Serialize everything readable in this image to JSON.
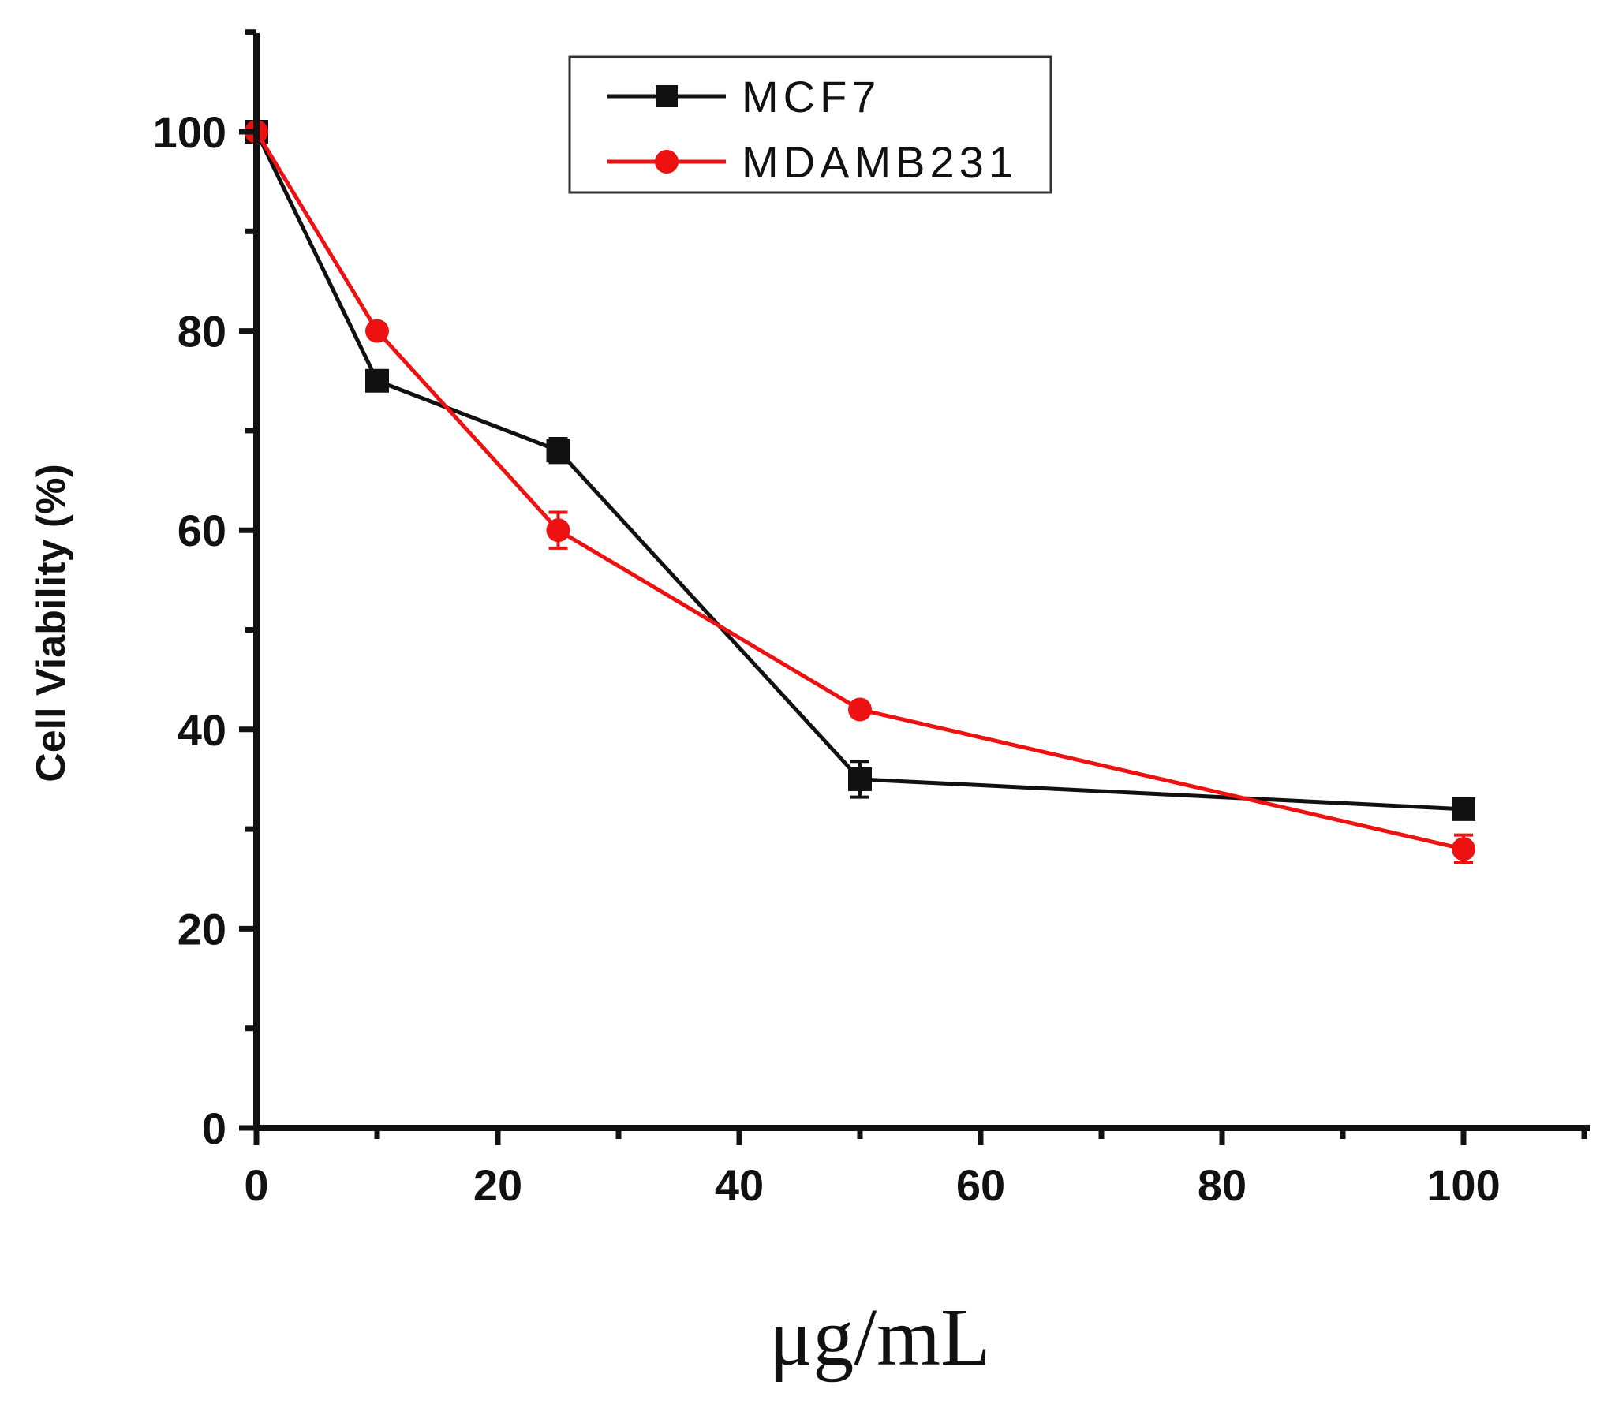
{
  "chart_data": {
    "type": "line",
    "title": "",
    "xlabel": "μg/mL",
    "ylabel": "Cell Viability (%)",
    "xlim": [
      0,
      110
    ],
    "ylim": [
      0,
      110
    ],
    "x_ticks": [
      0,
      20,
      40,
      60,
      80,
      100
    ],
    "y_ticks": [
      0,
      20,
      40,
      60,
      80,
      100
    ],
    "x_tick_labels": [
      "0",
      "20",
      "40",
      "60",
      "80",
      "100"
    ],
    "y_tick_labels": [
      "0",
      "20",
      "40",
      "60",
      "80",
      "100"
    ],
    "grid": false,
    "legend_position": "top-center",
    "series": [
      {
        "name": "MCF7",
        "color": "#111111",
        "marker": "square",
        "x": [
          0,
          10,
          25,
          50,
          100
        ],
        "values": [
          100,
          75,
          68,
          35,
          32
        ],
        "errors": [
          0,
          0.5,
          1.2,
          1.8,
          0.6
        ]
      },
      {
        "name": "MDAMB231",
        "color": "#ee1111",
        "marker": "circle",
        "x": [
          0,
          10,
          25,
          50,
          100
        ],
        "values": [
          100,
          80,
          60,
          42,
          28
        ],
        "errors": [
          0,
          0.5,
          1.8,
          0.6,
          1.4
        ]
      }
    ]
  }
}
